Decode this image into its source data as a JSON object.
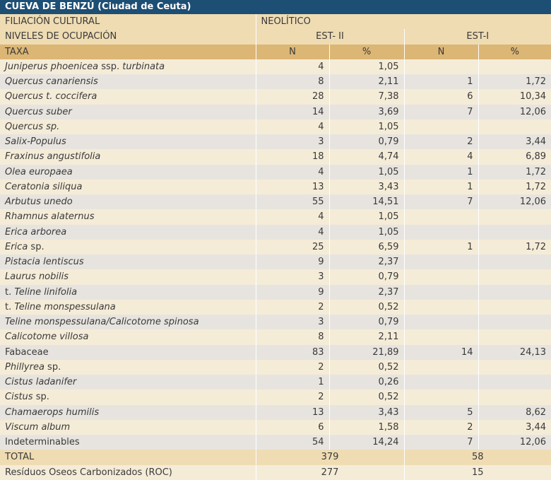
{
  "title": "CUEVA DE BENZÚ (Ciudad de Ceuta)",
  "filiacion": {
    "label": "FILIACIÓN CULTURAL",
    "value": "NEOLÍTICO"
  },
  "niveles": {
    "label": "NIVELES DE OCUPACIÓN",
    "levels": [
      "EST- II",
      "EST-I"
    ]
  },
  "header": [
    "TAXA",
    "N",
    "%",
    "N",
    "%"
  ],
  "taxa": [
    {
      "name": [
        {
          "text": "Juniperus phoenicea",
          "italic": true
        },
        {
          "text": " ssp. ",
          "italic": false
        },
        {
          "text": "turbinata",
          "italic": true
        }
      ],
      "cells": [
        "4",
        "1,05",
        null,
        null
      ]
    },
    {
      "name": [
        {
          "text": "Quercus canariensis",
          "italic": true
        }
      ],
      "cells": [
        "8",
        "2,11",
        "1",
        "1,72"
      ]
    },
    {
      "name": [
        {
          "text": "Quercus t. coccifera",
          "italic": true
        }
      ],
      "cells": [
        "28",
        "7,38",
        "6",
        "10,34"
      ]
    },
    {
      "name": [
        {
          "text": "Quercus suber",
          "italic": true
        }
      ],
      "cells": [
        "14",
        "3,69",
        "7",
        "12,06"
      ]
    },
    {
      "name": [
        {
          "text": "Quercus sp.",
          "italic": true
        }
      ],
      "cells": [
        "4",
        "1,05",
        null,
        null
      ]
    },
    {
      "name": [
        {
          "text": "Salix-Populus",
          "italic": true
        }
      ],
      "cells": [
        "3",
        "0,79",
        "2",
        "3,44"
      ]
    },
    {
      "name": [
        {
          "text": "Fraxinus angustifolia",
          "italic": true
        }
      ],
      "cells": [
        "18",
        "4,74",
        "4",
        "6,89"
      ]
    },
    {
      "name": [
        {
          "text": "Olea europaea",
          "italic": true
        }
      ],
      "cells": [
        "4",
        "1,05",
        "1",
        "1,72"
      ]
    },
    {
      "name": [
        {
          "text": "Ceratonia siliqua",
          "italic": true
        }
      ],
      "cells": [
        "13",
        "3,43",
        "1",
        "1,72"
      ]
    },
    {
      "name": [
        {
          "text": "Arbutus unedo",
          "italic": true
        }
      ],
      "cells": [
        "55",
        "14,51",
        "7",
        "12,06"
      ]
    },
    {
      "name": [
        {
          "text": "Rhamnus alaternus",
          "italic": true
        }
      ],
      "cells": [
        "4",
        "1,05",
        null,
        null
      ]
    },
    {
      "name": [
        {
          "text": "Erica arborea",
          "italic": true
        }
      ],
      "cells": [
        "4",
        "1,05",
        null,
        null
      ]
    },
    {
      "name": [
        {
          "text": "Erica",
          "italic": true
        },
        {
          "text": " sp.",
          "italic": false
        }
      ],
      "cells": [
        "25",
        "6,59",
        "1",
        "1,72"
      ]
    },
    {
      "name": [
        {
          "text": "Pistacia lentiscus",
          "italic": true
        }
      ],
      "cells": [
        "9",
        "2,37",
        null,
        null
      ]
    },
    {
      "name": [
        {
          "text": "Laurus nobilis",
          "italic": true
        }
      ],
      "cells": [
        "3",
        "0,79",
        null,
        null
      ]
    },
    {
      "name": [
        {
          "text": "t. ",
          "italic": false
        },
        {
          "text": "Teline linifolia",
          "italic": true
        }
      ],
      "cells": [
        "9",
        "2,37",
        null,
        null
      ]
    },
    {
      "name": [
        {
          "text": "t. ",
          "italic": false
        },
        {
          "text": "Teline monspessulana",
          "italic": true
        }
      ],
      "cells": [
        "2",
        "0,52",
        null,
        null
      ]
    },
    {
      "name": [
        {
          "text": "Teline monspessulana/Calicotome spinosa",
          "italic": true
        }
      ],
      "cells": [
        "3",
        "0,79",
        null,
        null
      ]
    },
    {
      "name": [
        {
          "text": "Calicotome villosa",
          "italic": true
        }
      ],
      "cells": [
        "8",
        "2,11",
        null,
        null
      ]
    },
    {
      "name": [
        {
          "text": "Fabaceae",
          "italic": false
        }
      ],
      "cells": [
        "83",
        "21,89",
        "14",
        "24,13"
      ]
    },
    {
      "name": [
        {
          "text": "Phillyrea",
          "italic": true
        },
        {
          "text": " sp.",
          "italic": false
        }
      ],
      "cells": [
        "2",
        "0,52",
        null,
        null
      ]
    },
    {
      "name": [
        {
          "text": "Cistus ladanifer",
          "italic": true
        }
      ],
      "cells": [
        "1",
        "0,26",
        null,
        null
      ]
    },
    {
      "name": [
        {
          "text": "Cistus",
          "italic": true
        },
        {
          "text": " sp.",
          "italic": false
        }
      ],
      "cells": [
        "2",
        "0,52",
        null,
        null
      ]
    },
    {
      "name": [
        {
          "text": "Chamaerops humilis",
          "italic": true
        }
      ],
      "cells": [
        "13",
        "3,43",
        "5",
        "8,62"
      ]
    },
    {
      "name": [
        {
          "text": "Viscum album",
          "italic": true
        }
      ],
      "cells": [
        "6",
        "1,58",
        "2",
        "3,44"
      ]
    },
    {
      "name": [
        {
          "text": "Indeterminables",
          "italic": false
        }
      ],
      "cells": [
        "54",
        "14,24",
        "7",
        "12,06"
      ]
    }
  ],
  "totals": [
    {
      "label": "TOTAL",
      "values": [
        "379",
        "58"
      ]
    },
    {
      "label": "Resíduos Oseos Carbonizados (ROC)",
      "values": [
        "277",
        "15"
      ]
    }
  ]
}
